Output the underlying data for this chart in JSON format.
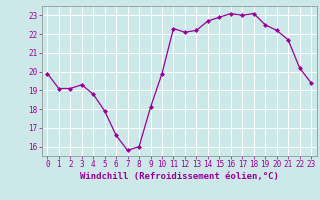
{
  "x": [
    0,
    1,
    2,
    3,
    4,
    5,
    6,
    7,
    8,
    9,
    10,
    11,
    12,
    13,
    14,
    15,
    16,
    17,
    18,
    19,
    20,
    21,
    22,
    23
  ],
  "y": [
    19.9,
    19.1,
    19.1,
    19.3,
    18.8,
    17.9,
    16.6,
    15.8,
    16.0,
    18.1,
    19.9,
    22.3,
    22.1,
    22.2,
    22.7,
    22.9,
    23.1,
    23.0,
    23.1,
    22.5,
    22.2,
    21.7,
    20.2,
    19.4
  ],
  "line_color": "#990099",
  "marker": "D",
  "markersize": 2.0,
  "linewidth": 0.9,
  "bg_color": "#cce8e8",
  "grid_color": "#ffffff",
  "xlabel": "Windchill (Refroidissement éolien,°C)",
  "ylim": [
    15.5,
    23.5
  ],
  "xlim": [
    -0.5,
    23.5
  ],
  "yticks": [
    16,
    17,
    18,
    19,
    20,
    21,
    22,
    23
  ],
  "xticks": [
    0,
    1,
    2,
    3,
    4,
    5,
    6,
    7,
    8,
    9,
    10,
    11,
    12,
    13,
    14,
    15,
    16,
    17,
    18,
    19,
    20,
    21,
    22,
    23
  ],
  "tick_color": "#990099",
  "label_color": "#990099",
  "tick_fontsize": 5.5,
  "xlabel_fontsize": 6.5,
  "spine_color": "#888888"
}
